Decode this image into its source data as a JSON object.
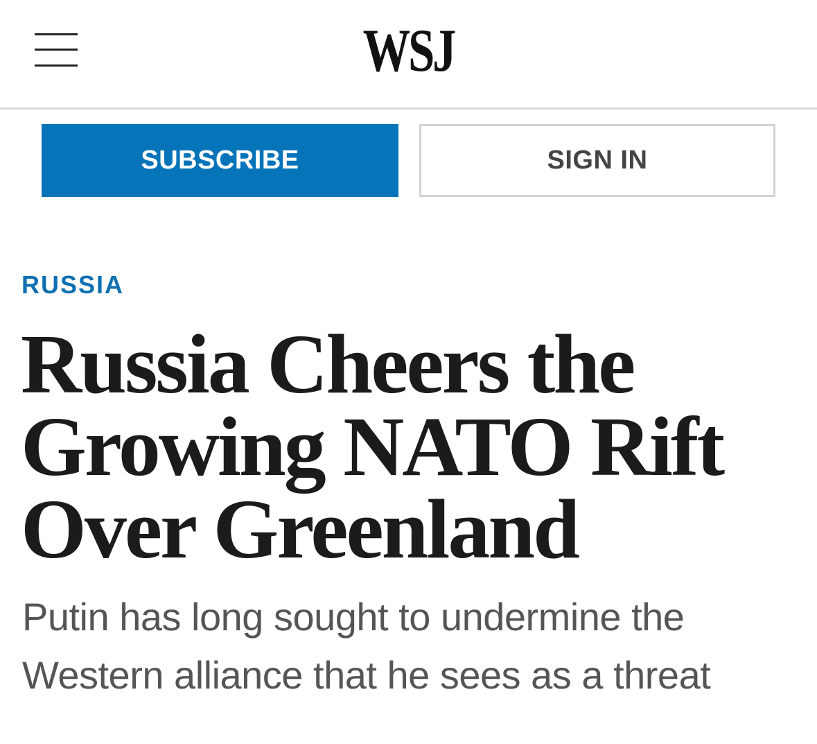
{
  "header": {
    "menu_icon": "hamburger-menu-icon",
    "logo": "WSJ"
  },
  "actions": {
    "subscribe_label": "SUBSCRIBE",
    "signin_label": "SIGN IN"
  },
  "article": {
    "section": "RUSSIA",
    "headline": "Russia Cheers the Growing NATO Rift Over Greenland",
    "dek": "Putin has long sought to undermine the Western alliance that he sees as a threat"
  },
  "colors": {
    "subscribe_bg": "#0574b9",
    "section_text": "#0e70b2",
    "headline_text": "#1b1b1b",
    "dek_text": "#555555"
  }
}
